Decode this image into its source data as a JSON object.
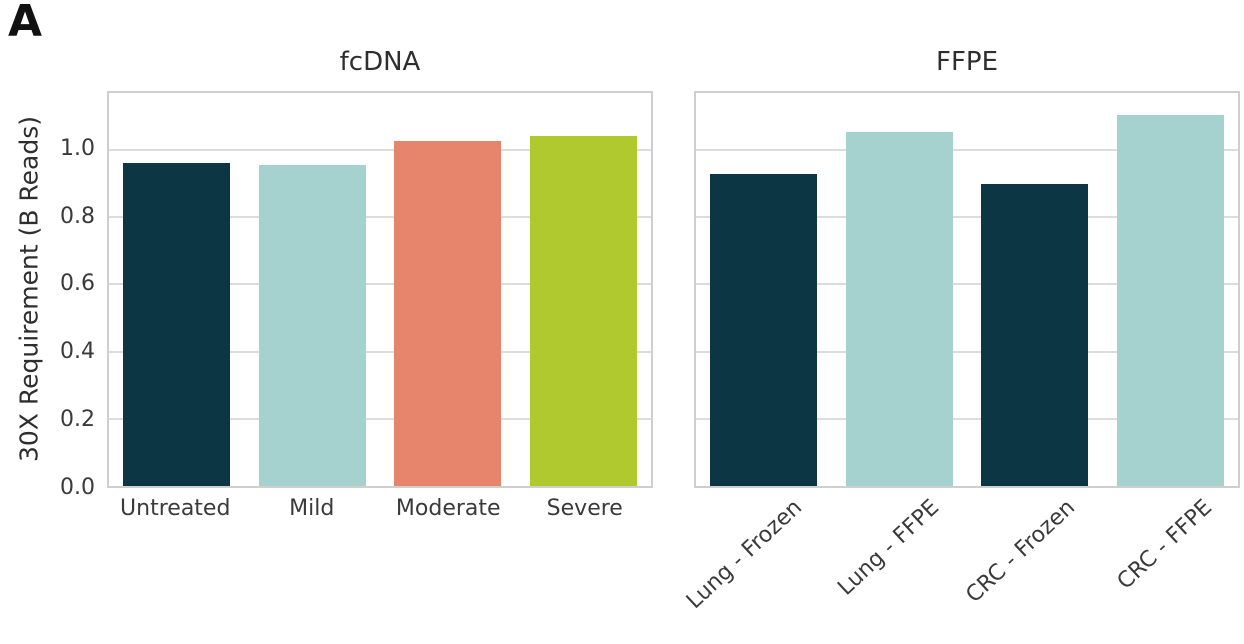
{
  "panel_label": "A",
  "palette": {
    "navy": "#0c3643",
    "teal": "#a5d1ce",
    "salmon": "#e6856b",
    "lime": "#afc92f",
    "grid": "#dcdcdc",
    "spine": "#cfcfcf",
    "tick_text": "#3a3a3a",
    "title_text": "#2e2e2e"
  },
  "chart_data": [
    {
      "type": "bar",
      "title": "fcDNA",
      "ylabel": "30X Requirement (B Reads)",
      "xlabel": "",
      "categories": [
        "Untreated",
        "Mild",
        "Moderate",
        "Severe"
      ],
      "values": [
        0.962,
        0.956,
        1.028,
        1.042
      ],
      "bar_colors": [
        "navy",
        "teal",
        "salmon",
        "lime"
      ],
      "yticks": [
        0.0,
        0.2,
        0.4,
        0.6,
        0.8,
        1.0
      ],
      "ylim": [
        0,
        1.17
      ],
      "grid": true,
      "legend": "none",
      "show_ytick_labels": true,
      "xtick_rotation": 0
    },
    {
      "type": "bar",
      "title": "FFPE",
      "ylabel": "",
      "xlabel": "",
      "categories": [
        "Lung - Frozen",
        "Lung - FFPE",
        "CRC - Frozen",
        "CRC - FFPE"
      ],
      "values": [
        0.928,
        1.054,
        0.9,
        1.104
      ],
      "bar_colors": [
        "navy",
        "teal",
        "navy",
        "teal"
      ],
      "yticks": [
        0.0,
        0.2,
        0.4,
        0.6,
        0.8,
        1.0
      ],
      "ylim": [
        0,
        1.17
      ],
      "grid": true,
      "legend": "none",
      "show_ytick_labels": false,
      "xtick_rotation": 43
    }
  ]
}
